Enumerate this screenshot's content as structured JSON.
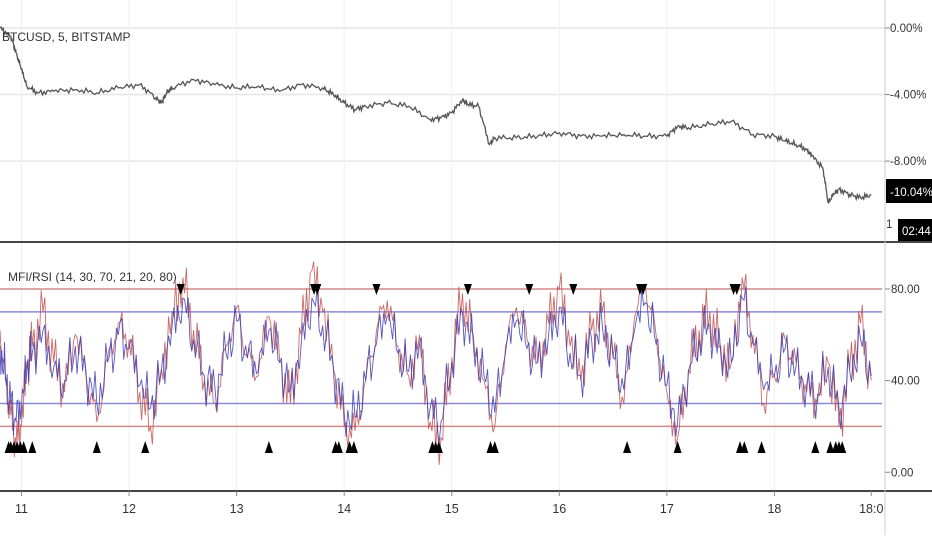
{
  "colors": {
    "background": "#ffffff",
    "grid": "#e6e6e6",
    "divider": "#444444",
    "price_line": "#555555",
    "mfi_line": "#c0504d",
    "rsi_line": "#3b3bb3",
    "band_red": "#d08a8a",
    "band_blue": "#8a8ad8",
    "marker": "#000000",
    "badge_bg": "#000000",
    "badge_text": "#ffffff"
  },
  "chart_data": [
    {
      "type": "line",
      "title": "BTCUSD, 5, BITSTAMP",
      "scale": "percent",
      "yticks": [
        "0.00%",
        "-4.00%",
        "-8.00%"
      ],
      "ylim": [
        -12.5,
        1.2
      ],
      "x_range_days": [
        10.8,
        19.0
      ],
      "last_value_label": "-10.04%",
      "countdown_label": "02:44",
      "hidden_tick_label": "1",
      "series": [
        {
          "x": [
            10.8,
            10.9,
            10.95,
            11.0,
            11.05,
            11.15,
            11.3,
            11.5,
            11.7,
            11.9,
            12.1,
            12.25,
            12.3,
            12.35,
            12.4,
            12.6,
            12.8,
            13.0,
            13.2,
            13.4,
            13.6,
            13.8,
            13.9,
            14.0,
            14.1,
            14.2,
            14.4,
            14.6,
            14.8,
            14.9,
            15.0,
            15.1,
            15.15,
            15.25,
            15.35,
            15.4,
            15.6,
            15.8,
            16.0,
            16.2,
            16.4,
            16.6,
            16.8,
            17.0,
            17.1,
            17.2,
            17.4,
            17.6,
            17.8,
            18.0,
            18.1,
            18.2,
            18.3,
            18.35,
            18.45,
            18.5,
            18.55,
            18.6,
            18.7,
            18.8,
            18.9
          ],
          "y": [
            0.0,
            -0.5,
            -1.5,
            -2.5,
            -3.5,
            -3.9,
            -3.8,
            -3.7,
            -3.9,
            -3.6,
            -3.4,
            -4.2,
            -4.5,
            -3.9,
            -3.6,
            -3.1,
            -3.4,
            -3.6,
            -3.5,
            -3.8,
            -3.4,
            -3.6,
            -4.0,
            -4.5,
            -4.9,
            -4.7,
            -4.5,
            -4.7,
            -5.5,
            -5.4,
            -5.1,
            -4.3,
            -4.6,
            -4.7,
            -7.0,
            -6.6,
            -6.6,
            -6.5,
            -6.3,
            -6.5,
            -6.5,
            -6.4,
            -6.5,
            -6.5,
            -5.9,
            -6.0,
            -5.8,
            -5.6,
            -6.4,
            -6.5,
            -6.8,
            -7.0,
            -7.3,
            -7.7,
            -8.4,
            -10.5,
            -10.0,
            -9.7,
            -10.0,
            -10.2,
            -10.04
          ]
        }
      ]
    },
    {
      "type": "line",
      "title": "MFI/RSI (14, 30, 70, 21, 20, 80)",
      "yticks": [
        0,
        40,
        80
      ],
      "ytick_labels": [
        "0.00",
        "40.00",
        "80.00"
      ],
      "ylim": [
        -6,
        97
      ],
      "bands": {
        "red": [
          80,
          20
        ],
        "blue": [
          70,
          30
        ]
      },
      "x_range_days": [
        10.8,
        19.0
      ],
      "xticks": [
        11,
        12,
        13,
        14,
        15,
        16,
        17,
        18,
        18.9
      ],
      "xtick_labels": [
        "11",
        "12",
        "13",
        "14",
        "15",
        "16",
        "17",
        "18",
        "18:0"
      ],
      "series": [
        {
          "x": [
            10.8,
            10.85,
            10.9,
            10.95,
            11.0,
            11.05,
            11.1,
            11.2,
            11.3,
            11.4,
            11.5,
            11.6,
            11.7,
            11.8,
            11.9,
            12.0,
            12.1,
            12.2,
            12.3,
            12.4,
            12.5,
            12.6,
            12.7,
            12.8,
            12.9,
            13.0,
            13.1,
            13.2,
            13.3,
            13.4,
            13.5,
            13.6,
            13.7,
            13.8,
            13.9,
            14.0,
            14.1,
            14.2,
            14.3,
            14.4,
            14.5,
            14.6,
            14.7,
            14.8,
            14.9,
            15.0,
            15.1,
            15.2,
            15.3,
            15.4,
            15.5,
            15.6,
            15.7,
            15.8,
            15.9,
            16.0,
            16.1,
            16.2,
            16.3,
            16.4,
            16.5,
            16.6,
            16.7,
            16.8,
            16.9,
            17.0,
            17.1,
            17.2,
            17.3,
            17.4,
            17.5,
            17.6,
            17.7,
            17.8,
            17.9,
            18.0,
            18.1,
            18.2,
            18.3,
            18.4,
            18.5,
            18.6,
            18.7,
            18.8,
            18.9
          ],
          "y": [
            62,
            40,
            25,
            12,
            20,
            45,
            55,
            70,
            48,
            35,
            60,
            42,
            22,
            50,
            65,
            58,
            35,
            20,
            45,
            70,
            85,
            62,
            40,
            30,
            55,
            72,
            50,
            42,
            68,
            48,
            30,
            60,
            88,
            70,
            45,
            20,
            18,
            40,
            62,
            75,
            55,
            42,
            60,
            22,
            15,
            50,
            78,
            60,
            40,
            20,
            55,
            72,
            58,
            48,
            65,
            80,
            55,
            40,
            62,
            70,
            50,
            30,
            68,
            82,
            60,
            35,
            15,
            45,
            62,
            70,
            55,
            48,
            85,
            60,
            30,
            42,
            58,
            48,
            35,
            30,
            48,
            20,
            45,
            65,
            40
          ]
        },
        {
          "x": [
            10.8,
            10.85,
            10.9,
            10.95,
            11.0,
            11.05,
            11.1,
            11.2,
            11.3,
            11.4,
            11.5,
            11.6,
            11.7,
            11.8,
            11.9,
            12.0,
            12.1,
            12.2,
            12.3,
            12.4,
            12.5,
            12.6,
            12.7,
            12.8,
            12.9,
            13.0,
            13.1,
            13.2,
            13.3,
            13.4,
            13.5,
            13.6,
            13.7,
            13.8,
            13.9,
            14.0,
            14.1,
            14.2,
            14.3,
            14.4,
            14.5,
            14.6,
            14.7,
            14.8,
            14.9,
            15.0,
            15.1,
            15.2,
            15.3,
            15.4,
            15.5,
            15.6,
            15.7,
            15.8,
            15.9,
            16.0,
            16.1,
            16.2,
            16.3,
            16.4,
            16.5,
            16.6,
            16.7,
            16.8,
            16.9,
            17.0,
            17.1,
            17.2,
            17.3,
            17.4,
            17.5,
            17.6,
            17.7,
            17.8,
            17.9,
            18.0,
            18.1,
            18.2,
            18.3,
            18.4,
            18.5,
            18.6,
            18.7,
            18.8,
            18.9
          ],
          "y": [
            55,
            42,
            30,
            22,
            28,
            45,
            52,
            62,
            46,
            40,
            55,
            44,
            30,
            48,
            60,
            54,
            38,
            28,
            44,
            64,
            76,
            58,
            42,
            36,
            52,
            66,
            50,
            44,
            62,
            48,
            36,
            56,
            76,
            64,
            46,
            26,
            24,
            40,
            56,
            68,
            52,
            44,
            56,
            28,
            22,
            48,
            70,
            56,
            42,
            26,
            52,
            66,
            54,
            48,
            60,
            72,
            52,
            42,
            58,
            64,
            50,
            36,
            62,
            74,
            56,
            38,
            22,
            44,
            58,
            64,
            52,
            48,
            76,
            56,
            36,
            42,
            54,
            46,
            38,
            34,
            46,
            28,
            44,
            58,
            42
          ]
        }
      ],
      "down_markers_x": [
        12.48,
        13.72,
        13.75,
        14.3,
        15.15,
        15.72,
        16.13,
        16.75,
        16.78,
        17.62,
        17.65
      ],
      "up_markers_x": [
        10.88,
        10.9,
        10.93,
        10.96,
        10.99,
        11.02,
        11.1,
        11.7,
        12.15,
        13.3,
        13.92,
        13.95,
        14.05,
        14.09,
        14.82,
        14.85,
        14.88,
        15.36,
        15.4,
        16.63,
        17.1,
        17.68,
        17.72,
        17.88,
        18.38,
        18.52,
        18.57,
        18.6,
        18.63
      ]
    }
  ]
}
